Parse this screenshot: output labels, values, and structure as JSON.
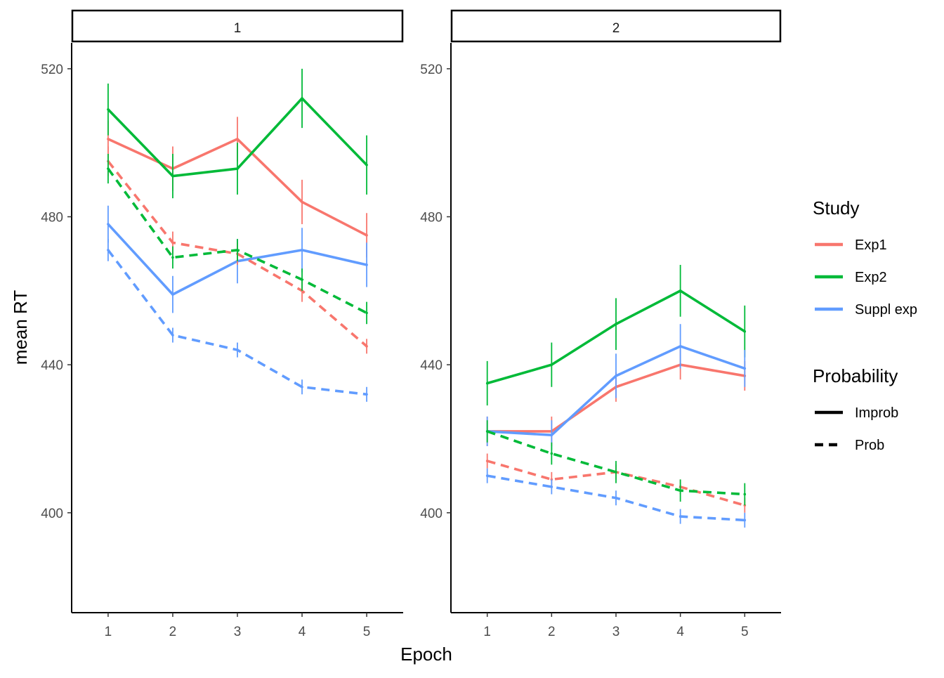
{
  "chart_data": {
    "type": "line",
    "xlabel": "Epoch",
    "ylabel": "mean RT",
    "x": [
      1,
      2,
      3,
      4,
      5
    ],
    "x_ticks": [
      "1",
      "2",
      "3",
      "4",
      "5"
    ],
    "y_ticks": [
      400,
      440,
      480,
      520
    ],
    "ylim": [
      373,
      527
    ],
    "grid": false,
    "legend_placement": "right",
    "legend": {
      "study_title": "Study",
      "study_entries": [
        {
          "label": "Exp1",
          "color": "#F8766D"
        },
        {
          "label": "Exp2",
          "color": "#00BA38"
        },
        {
          "label": "Suppl exp",
          "color": "#619CFF"
        }
      ],
      "probability_title": "Probability",
      "probability_entries": [
        {
          "label": "Improb",
          "linetype": "solid"
        },
        {
          "label": "Prob",
          "linetype": "dashed"
        }
      ]
    },
    "panels": [
      {
        "strip": "1",
        "series": [
          {
            "study": "Exp1",
            "probability": "Improb",
            "values": [
              501,
              493,
              501,
              484,
              475
            ],
            "errors": [
              5,
              6,
              6,
              6,
              6
            ]
          },
          {
            "study": "Exp2",
            "probability": "Improb",
            "values": [
              509,
              491,
              493,
              512,
              494
            ],
            "errors": [
              7,
              6,
              7,
              8,
              8
            ]
          },
          {
            "study": "Suppl exp",
            "probability": "Improb",
            "values": [
              478,
              459,
              468,
              471,
              467
            ],
            "errors": [
              5,
              5,
              6,
              6,
              6
            ]
          },
          {
            "study": "Exp1",
            "probability": "Prob",
            "values": [
              495,
              473,
              470,
              460,
              445
            ],
            "errors": [
              4,
              3,
              3,
              3,
              2
            ]
          },
          {
            "study": "Exp2",
            "probability": "Prob",
            "values": [
              493,
              469,
              471,
              463,
              454
            ],
            "errors": [
              4,
              3,
              3,
              3,
              3
            ]
          },
          {
            "study": "Suppl exp",
            "probability": "Prob",
            "values": [
              471,
              448,
              444,
              434,
              432
            ],
            "errors": [
              3,
              2,
              2,
              2,
              2
            ]
          }
        ]
      },
      {
        "strip": "2",
        "series": [
          {
            "study": "Exp1",
            "probability": "Improb",
            "values": [
              422,
              422,
              434,
              440,
              437
            ],
            "errors": [
              4,
              4,
              4,
              4,
              4
            ]
          },
          {
            "study": "Exp2",
            "probability": "Improb",
            "values": [
              435,
              440,
              451,
              460,
              449
            ],
            "errors": [
              6,
              6,
              7,
              7,
              7
            ]
          },
          {
            "study": "Suppl exp",
            "probability": "Improb",
            "values": [
              422,
              421,
              437,
              445,
              439
            ],
            "errors": [
              4,
              4,
              6,
              6,
              5
            ]
          },
          {
            "study": "Exp1",
            "probability": "Prob",
            "values": [
              414,
              409,
              411,
              407,
              402
            ],
            "errors": [
              2,
              2,
              2,
              2,
              2
            ]
          },
          {
            "study": "Exp2",
            "probability": "Prob",
            "values": [
              422,
              416,
              411,
              406,
              405
            ],
            "errors": [
              3,
              3,
              3,
              3,
              3
            ]
          },
          {
            "study": "Suppl exp",
            "probability": "Prob",
            "values": [
              410,
              407,
              404,
              399,
              398
            ],
            "errors": [
              2,
              2,
              2,
              2,
              2
            ]
          }
        ]
      }
    ]
  }
}
